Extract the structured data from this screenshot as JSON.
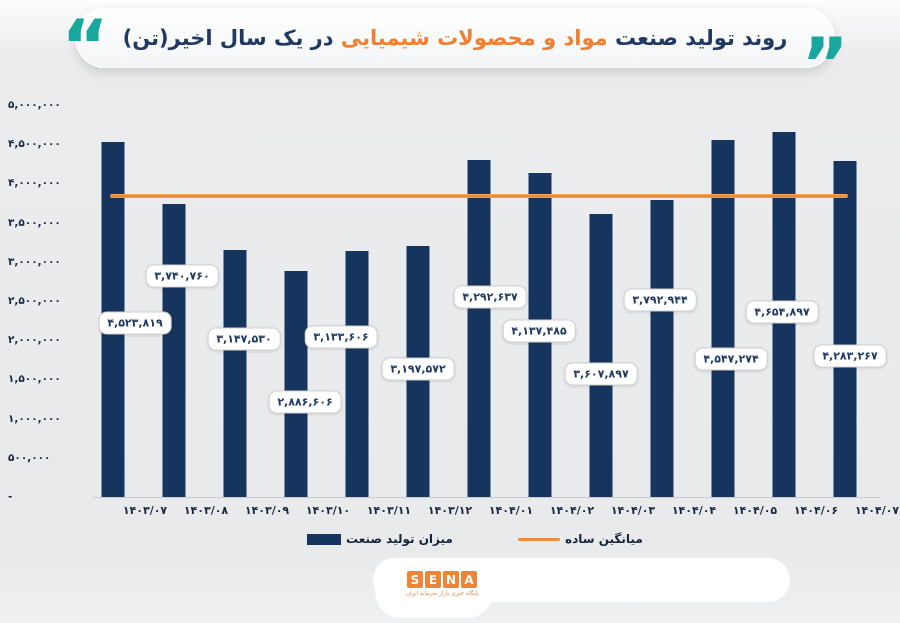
{
  "title": {
    "part1": "روند تولید صنعت",
    "part2": "مواد و محصولات شیمیایی",
    "part3": "در یک سال اخیر(تن)",
    "quote_open": "”",
    "quote_close": "“"
  },
  "colors": {
    "bar": "#16355e",
    "average_line": "#ED7D31",
    "title_navy": "#1f3864",
    "title_orange": "#ef8032",
    "quote_teal": "#17a79d"
  },
  "chart_data": {
    "type": "bar",
    "title": "روند تولید صنعت مواد و محصولات شیمیایی در یک سال اخیر(تن)",
    "categories": [
      "۱۴۰۳/۰۷",
      "۱۴۰۳/۰۸",
      "۱۴۰۳/۰۹",
      "۱۴۰۳/۱۰",
      "۱۴۰۳/۱۱",
      "۱۴۰۳/۱۲",
      "۱۴۰۴/۰۱",
      "۱۴۰۴/۰۲",
      "۱۴۰۴/۰۳",
      "۱۴۰۴/۰۴",
      "۱۴۰۴/۰۵",
      "۱۴۰۴/۰۶",
      "۱۴۰۴/۰۷"
    ],
    "values": [
      4523819,
      3740760,
      3147530,
      2886606,
      3133606,
      3197572,
      4292637,
      4137485,
      3607897,
      3792944,
      4547274,
      4654897,
      4283267
    ],
    "value_labels": [
      "۴,۵۲۳,۸۱۹",
      "۳,۷۴۰,۷۶۰",
      "۳,۱۴۷,۵۳۰",
      "۲,۸۸۶,۶۰۶",
      "۳,۱۳۳,۶۰۶",
      "۳,۱۹۷,۵۷۲",
      "۴,۲۹۲,۶۳۷",
      "۴,۱۳۷,۴۸۵",
      "۳,۶۰۷,۸۹۷",
      "۳,۷۹۲,۹۴۴",
      "۴,۵۴۷,۲۷۴",
      "۴,۶۵۴,۸۹۷",
      "۴,۲۸۳,۲۶۷"
    ],
    "average_line_value": 3841996,
    "ylim": [
      0,
      5000000
    ],
    "y_tick_labels": [
      "۵,۰۰۰,۰۰۰",
      "۴,۵۰۰,۰۰۰",
      "۴,۰۰۰,۰۰۰",
      "۳,۵۰۰,۰۰۰",
      "۳,۰۰۰,۰۰۰",
      "۲,۵۰۰,۰۰۰",
      "۲,۰۰۰,۰۰۰",
      "۱,۵۰۰,۰۰۰",
      "۱,۰۰۰,۰۰۰",
      "۵۰۰,۰۰۰",
      "-"
    ],
    "grid": false,
    "legend_position": "bottom",
    "legend": {
      "production_label": "میزان تولید صنعت",
      "average_label": "میانگین ساده"
    }
  },
  "footer": {
    "logo_letters": [
      "S",
      "E",
      "N",
      "A"
    ],
    "logo_caption": "پایگاه خبری بازار سرمایه ایران"
  }
}
